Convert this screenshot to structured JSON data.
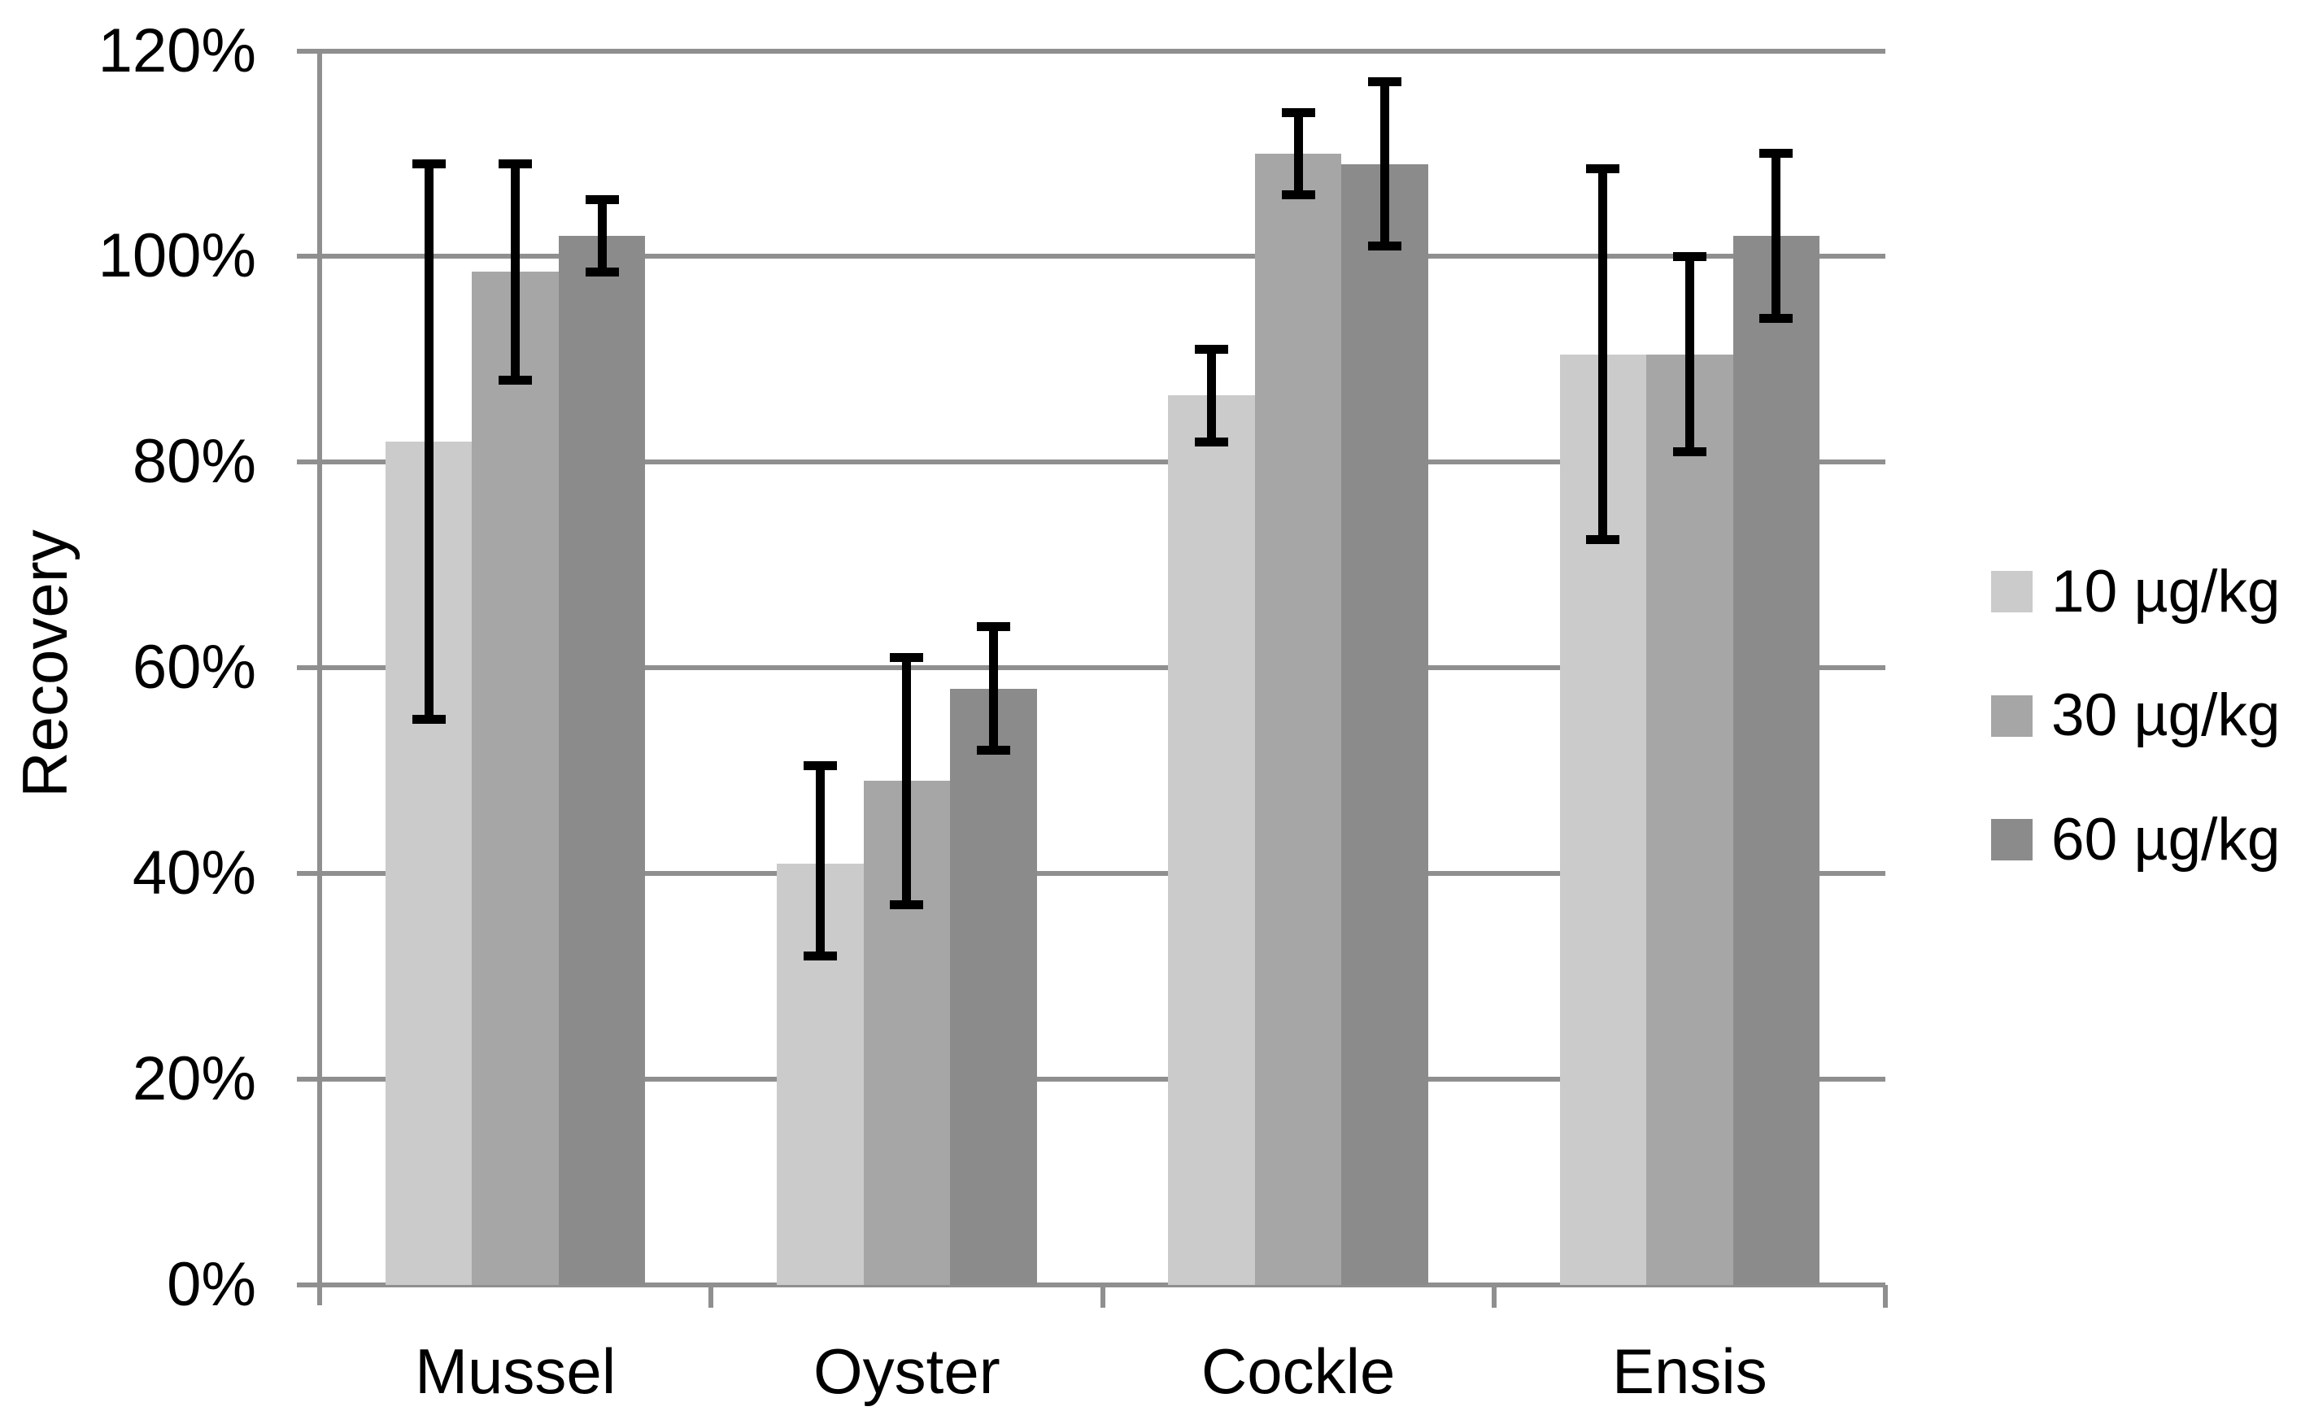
{
  "chart_data": {
    "type": "bar",
    "title": "",
    "ylabel": "Recovery",
    "xlabel": "",
    "categories": [
      "Mussel",
      "Oyster",
      "Cockle",
      "Ensis"
    ],
    "series": [
      {
        "name": "10 µg/kg",
        "color": "#cbcbcb",
        "values": [
          82,
          41,
          86.5,
          90.5
        ],
        "err_low": [
          55,
          32,
          82,
          72.5
        ],
        "err_high": [
          109,
          50.5,
          91,
          108.5
        ]
      },
      {
        "name": "30 µg/kg",
        "color": "#a6a6a6",
        "values": [
          98.5,
          49,
          110,
          90.5
        ],
        "err_low": [
          88,
          37,
          106,
          81
        ],
        "err_high": [
          109,
          61,
          114,
          100
        ]
      },
      {
        "name": "60 µg/kg",
        "color": "#8b8b8b",
        "values": [
          102,
          58,
          109,
          102
        ],
        "err_low": [
          98.5,
          52,
          101,
          94
        ],
        "err_high": [
          105.5,
          64,
          117,
          110
        ]
      }
    ],
    "y_tick_labels": [
      "0%",
      "20%",
      "40%",
      "60%",
      "80%",
      "100%",
      "120%"
    ],
    "y_tick_values": [
      0,
      20,
      40,
      60,
      80,
      100,
      120
    ],
    "ylim": [
      0,
      120
    ],
    "grid": true,
    "legend_position": "right",
    "error_bars": true,
    "colors": {
      "axis": "#8f8f8f",
      "gridline": "#8f8f8f",
      "error_bar": "#000000",
      "text": "#000000",
      "background": "#ffffff"
    }
  }
}
